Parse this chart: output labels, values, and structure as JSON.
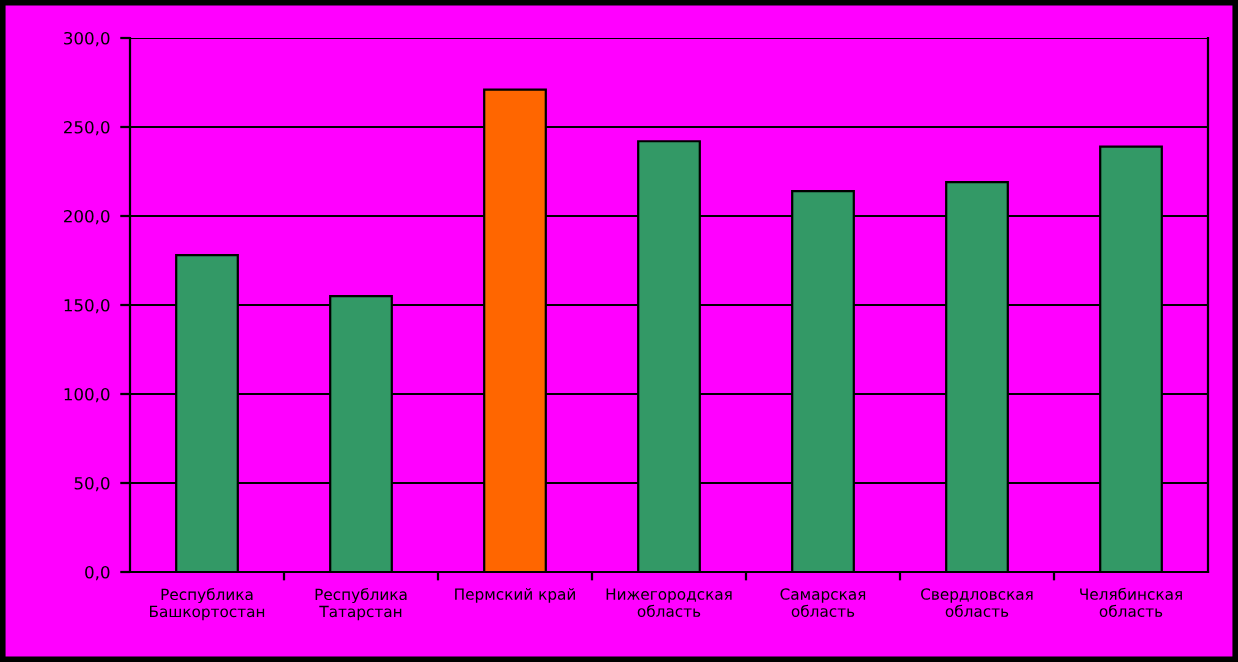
{
  "chart_data": {
    "type": "bar",
    "categories": [
      "Республика Башкортостан",
      "Республика Татарстан",
      "Пермский край",
      "Нижегородская область",
      "Самарская область",
      "Свердловская область",
      "Челябинская область"
    ],
    "values": [
      178,
      155,
      271,
      242,
      214,
      219,
      239
    ],
    "colors": [
      "#339966",
      "#339966",
      "#ff6600",
      "#339966",
      "#339966",
      "#339966",
      "#339966"
    ],
    "ylim": [
      0,
      300
    ],
    "yticks": [
      {
        "value": 0,
        "label": "0,0"
      },
      {
        "value": 50,
        "label": "50,0"
      },
      {
        "value": 100,
        "label": "100,0"
      },
      {
        "value": 150,
        "label": "150,0"
      },
      {
        "value": 200,
        "label": "200,0"
      },
      {
        "value": 250,
        "label": "250,0"
      },
      {
        "value": 300,
        "label": "300,0"
      }
    ],
    "grid": "y",
    "legend": false
  }
}
